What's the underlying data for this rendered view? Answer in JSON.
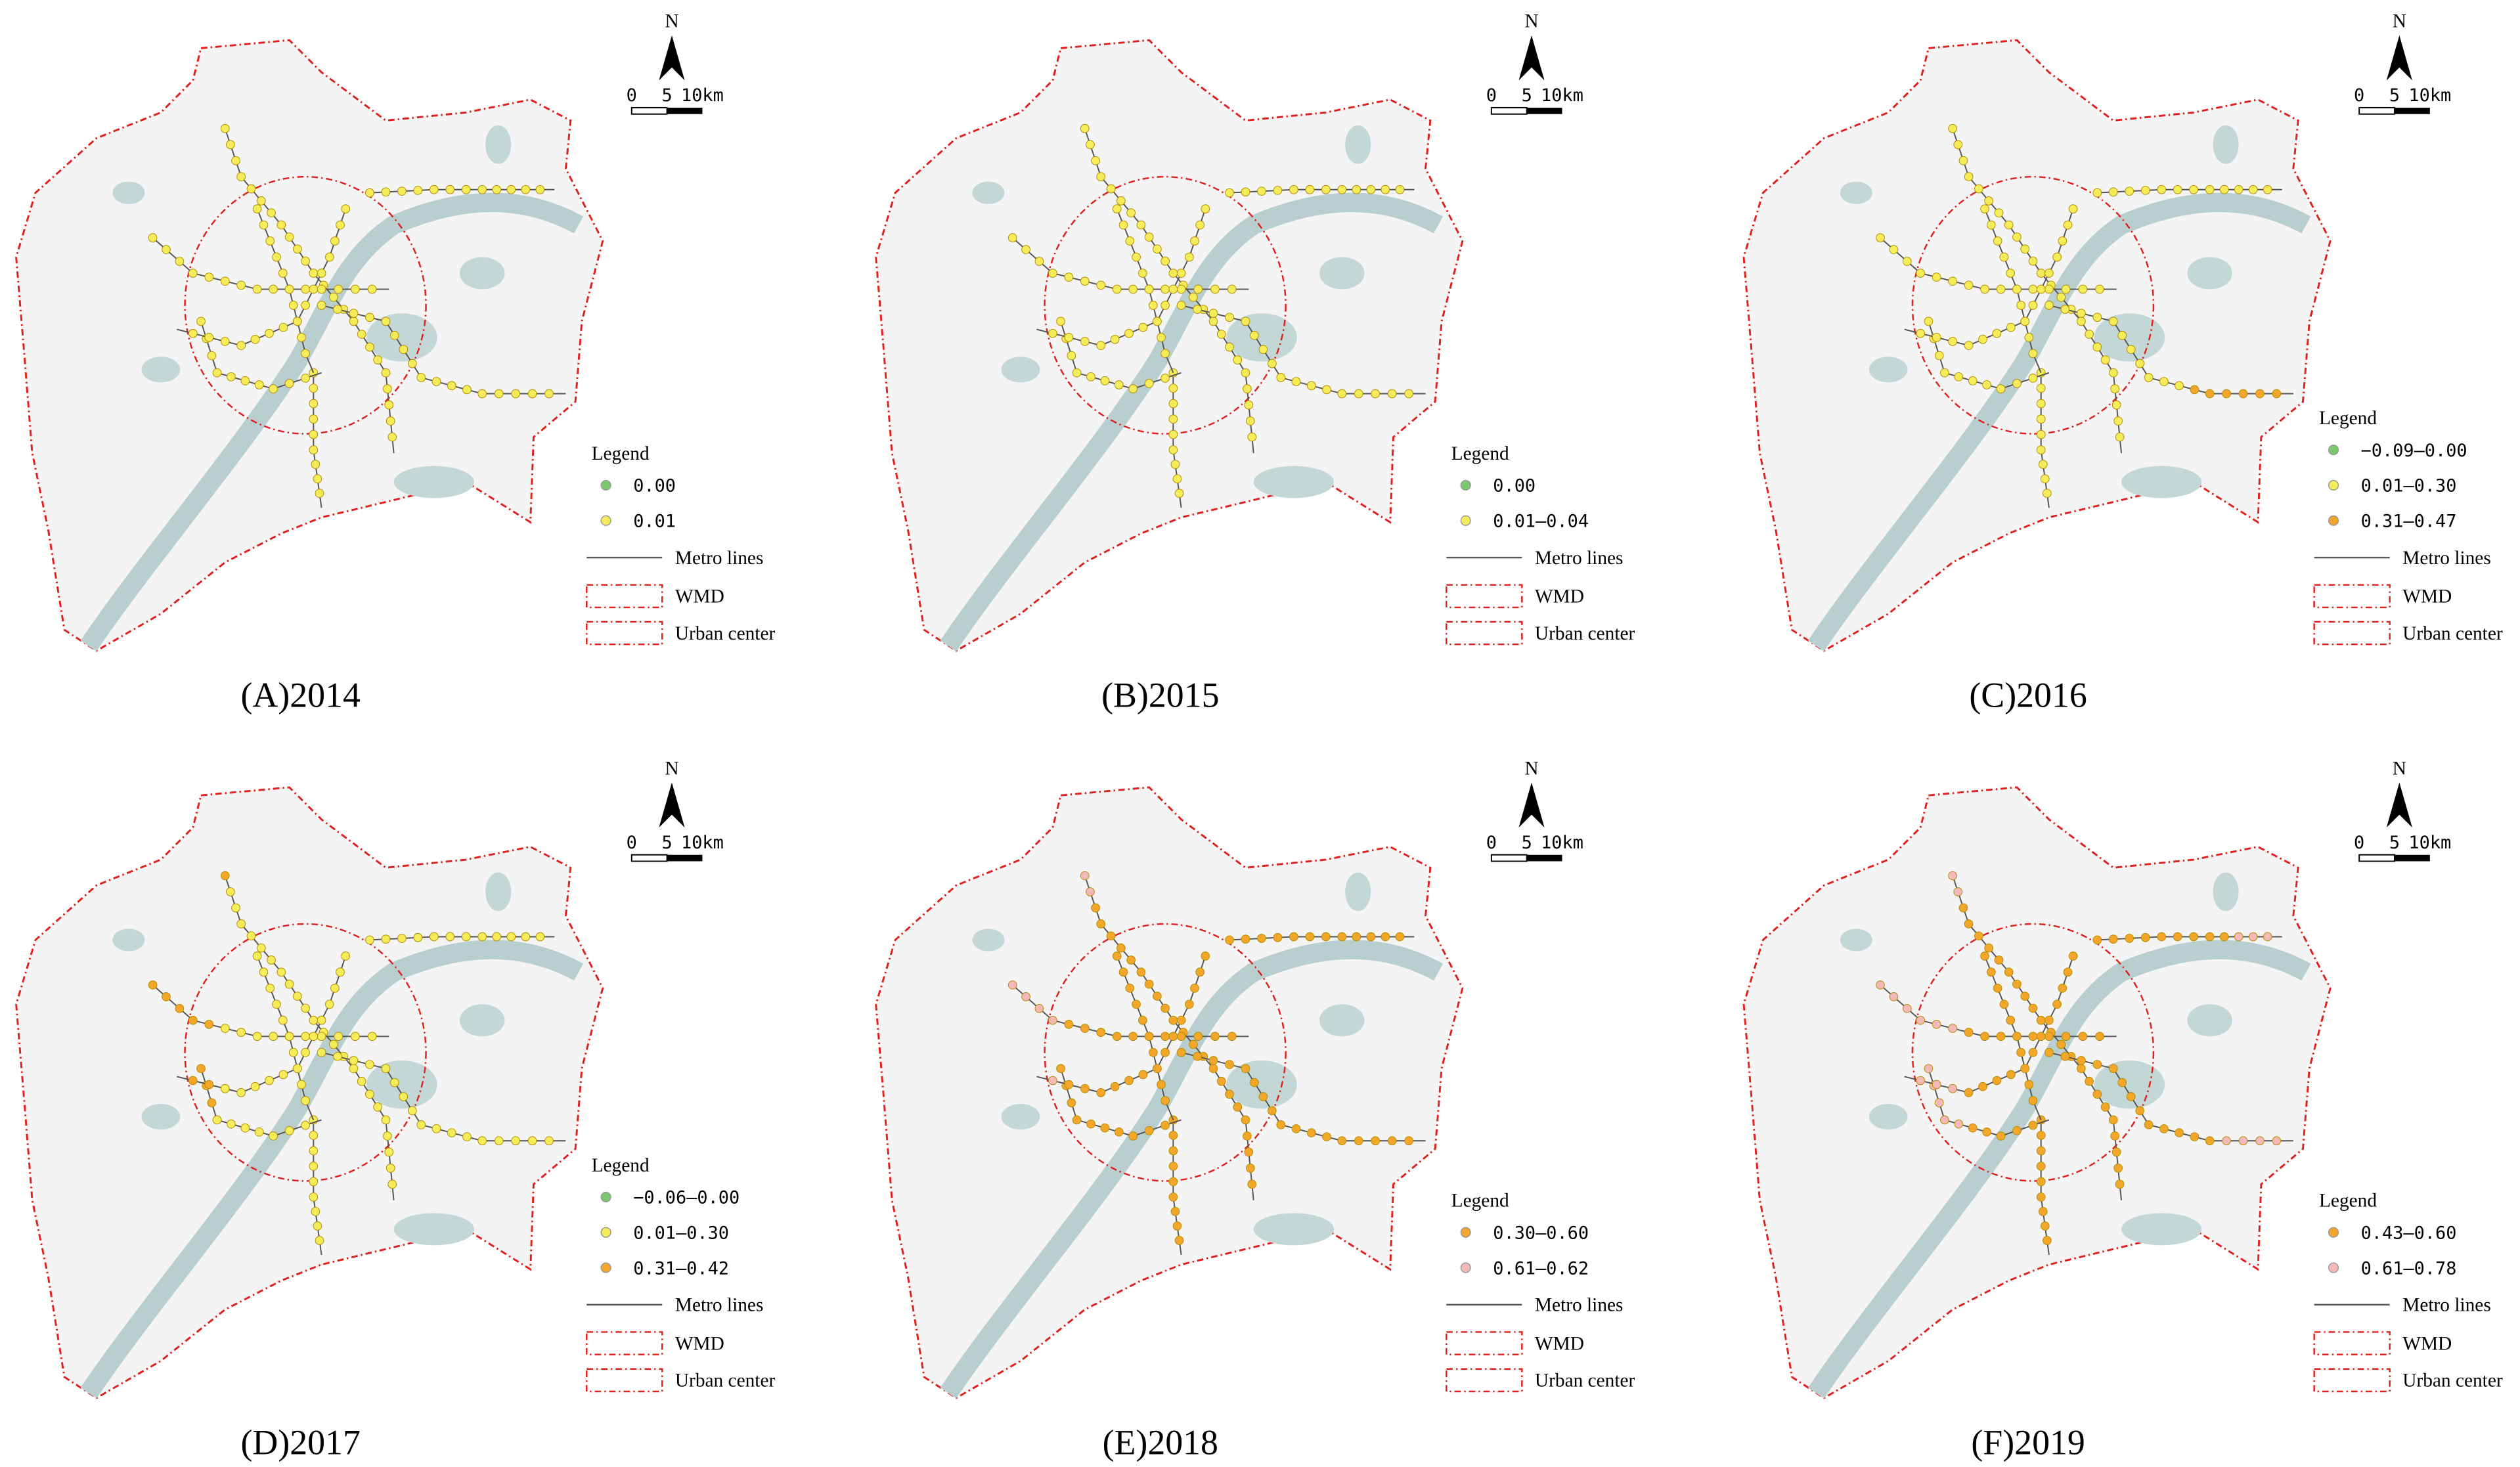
{
  "panels": [
    {
      "caption": "(A)2014",
      "legend_title": "Legend",
      "classes": [
        {
          "label": "0.00",
          "color": "#7cc86e"
        },
        {
          "label": "0.01",
          "color": "#f5ec5a"
        }
      ],
      "metro_label": "Metro lines",
      "wmd_label": "WMD",
      "center_label": "Urban center",
      "north": "N",
      "scale": [
        "0",
        "5",
        "10km"
      ]
    },
    {
      "caption": "(B)2015",
      "legend_title": "Legend",
      "classes": [
        {
          "label": "0.00",
          "color": "#7cc86e"
        },
        {
          "label": "0.01–0.04",
          "color": "#f5ec5a"
        }
      ],
      "metro_label": "Metro lines",
      "wmd_label": "WMD",
      "center_label": "Urban center",
      "north": "N",
      "scale": [
        "0",
        "5",
        "10km"
      ]
    },
    {
      "caption": "(C)2016",
      "legend_title": "Legend",
      "classes": [
        {
          "label": "−0.09–0.00",
          "color": "#7cc86e"
        },
        {
          "label": "0.01–0.30",
          "color": "#f5ec5a"
        },
        {
          "label": "0.31–0.47",
          "color": "#f2a72a"
        }
      ],
      "metro_label": "Metro lines",
      "wmd_label": "WMD",
      "center_label": "Urban center",
      "north": "N",
      "scale": [
        "0",
        "5",
        "10km"
      ]
    },
    {
      "caption": "(D)2017",
      "legend_title": "Legend",
      "classes": [
        {
          "label": "−0.06–0.00",
          "color": "#7cc86e"
        },
        {
          "label": "0.01–0.30",
          "color": "#f5ec5a"
        },
        {
          "label": "0.31–0.42",
          "color": "#f2a72a"
        }
      ],
      "metro_label": "Metro lines",
      "wmd_label": "WMD",
      "center_label": "Urban center",
      "north": "N",
      "scale": [
        "0",
        "5",
        "10km"
      ]
    },
    {
      "caption": "(E)2018",
      "legend_title": "Legend",
      "classes": [
        {
          "label": "0.30–0.60",
          "color": "#f2a72a"
        },
        {
          "label": "0.61–0.62",
          "color": "#f4b8b8"
        }
      ],
      "metro_label": "Metro lines",
      "wmd_label": "WMD",
      "center_label": "Urban center",
      "north": "N",
      "scale": [
        "0",
        "5",
        "10km"
      ]
    },
    {
      "caption": "(F)2019",
      "legend_title": "Legend",
      "classes": [
        {
          "label": "0.43–0.60",
          "color": "#f2a72a"
        },
        {
          "label": "0.61–0.78",
          "color": "#f4b8b8"
        }
      ],
      "metro_label": "Metro lines",
      "wmd_label": "WMD",
      "center_label": "Urban center",
      "north": "N",
      "scale": [
        "0",
        "5",
        "10km"
      ]
    }
  ]
}
